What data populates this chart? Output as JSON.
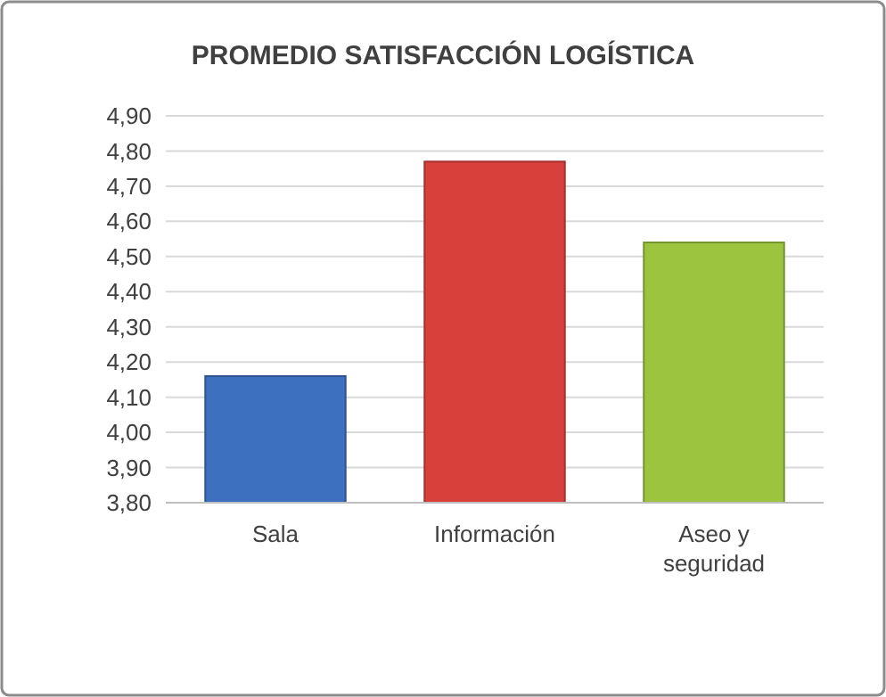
{
  "chart_data": {
    "type": "bar",
    "title": "PROMEDIO SATISFACCIÓN LOGÍSTICA",
    "categories": [
      "Sala",
      "Información",
      "Aseo y seguridad"
    ],
    "values": [
      4.16,
      4.77,
      4.54
    ],
    "colors": [
      "#3d70bf",
      "#d8403c",
      "#9cc43e"
    ],
    "ylim": [
      3.8,
      4.9
    ],
    "yticks": [
      {
        "value": 3.8,
        "label": "3,80"
      },
      {
        "value": 3.9,
        "label": "3,90"
      },
      {
        "value": 4.0,
        "label": "4,00"
      },
      {
        "value": 4.1,
        "label": "4,10"
      },
      {
        "value": 4.2,
        "label": "4,20"
      },
      {
        "value": 4.3,
        "label": "4,30"
      },
      {
        "value": 4.4,
        "label": "4,40"
      },
      {
        "value": 4.5,
        "label": "4,50"
      },
      {
        "value": 4.6,
        "label": "4,60"
      },
      {
        "value": 4.7,
        "label": "4,70"
      },
      {
        "value": 4.8,
        "label": "4,80"
      },
      {
        "value": 4.9,
        "label": "4,90"
      }
    ],
    "grid": "y"
  }
}
